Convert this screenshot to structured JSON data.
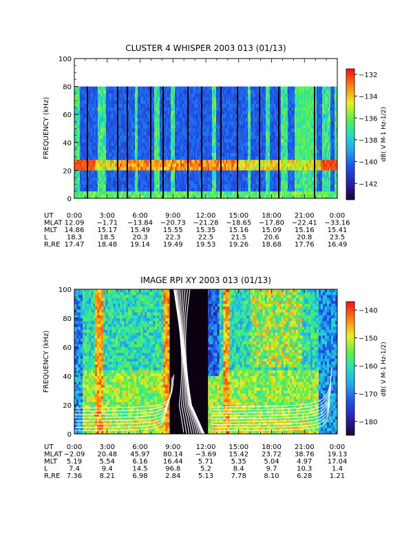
{
  "chart_data": [
    {
      "type": "heatmap",
      "title": "CLUSTER 4 WHISPER 2003 013 (01/13)",
      "ylabel": "FREQUENCY (kHz)",
      "ylim": [
        0,
        100
      ],
      "yticks": [
        0,
        20,
        40,
        60,
        80,
        100
      ],
      "xlim_hours": [
        0,
        24
      ],
      "colorbar": {
        "label": "dB( V M-1 Hz-1/2)",
        "range": [
          -143.5,
          -131.5
        ],
        "ticks": [
          -132,
          -134,
          -136,
          -138,
          -140,
          -142
        ]
      },
      "ephemeris_rows": [
        {
          "name": "UT",
          "values": [
            "0:00",
            "3:00",
            "6:00",
            "9:00",
            "12:00",
            "15:00",
            "18:00",
            "21:00",
            "0:00"
          ]
        },
        {
          "name": "MLAT",
          "values": [
            "12.09",
            "-1.71",
            "-13.84",
            "-20.73",
            "-21.28",
            "-18.65",
            "-17.80",
            "-22.41",
            "-33.16"
          ]
        },
        {
          "name": "MLT",
          "values": [
            "14.86",
            "15.17",
            "15.49",
            "15.55",
            "15.35",
            "15.16",
            "15.09",
            "15.16",
            "15.41"
          ]
        },
        {
          "name": "L",
          "values": [
            "18.3",
            "18.5",
            "20.3",
            "22.3",
            "22.5",
            "21.5",
            "20.6",
            "20.8",
            "23.5"
          ]
        },
        {
          "name": "R,RE",
          "values": [
            "17.47",
            "18.48",
            "19.14",
            "19.49",
            "19.53",
            "19.26",
            "18.68",
            "17.76",
            "16.49"
          ]
        }
      ]
    },
    {
      "type": "heatmap",
      "title": "IMAGE RPI XY 2003 013 (01/13)",
      "ylabel": "FREQUENCY (kHz)",
      "ylim": [
        0,
        100
      ],
      "yticks": [
        0,
        20,
        40,
        60,
        80,
        100
      ],
      "xlim_hours": [
        0,
        24
      ],
      "colorbar": {
        "label": "dB( V M-1 Hz-1/2)",
        "range": [
          -185,
          -137
        ],
        "ticks": [
          -140,
          -150,
          -160,
          -170,
          -180
        ]
      },
      "ephemeris_rows": [
        {
          "name": "UT",
          "values": [
            "0:00",
            "3:00",
            "6:00",
            "9:00",
            "12:00",
            "15:00",
            "18:00",
            "21:00",
            "0:00"
          ]
        },
        {
          "name": "MLAT",
          "values": [
            "-2.09",
            "20.48",
            "45.97",
            "80.14",
            "-3.69",
            "15.42",
            "23.72",
            "38.76",
            "19.13"
          ]
        },
        {
          "name": "MLT",
          "values": [
            "5.19",
            "5.54",
            "6.16",
            "16.44",
            "5.71",
            "5.35",
            "5.04",
            "4.97",
            "17.04"
          ]
        },
        {
          "name": "L",
          "values": [
            "7.4",
            "9.4",
            "14.5",
            "96.8",
            "5.2",
            "8.4",
            "9.7",
            "10.3",
            "1.4"
          ]
        },
        {
          "name": "R,RE",
          "values": [
            "7.36",
            "8.21",
            "6.98",
            "2.84",
            "5.13",
            "7.78",
            "8.10",
            "6.28",
            "1.21"
          ]
        }
      ]
    }
  ]
}
